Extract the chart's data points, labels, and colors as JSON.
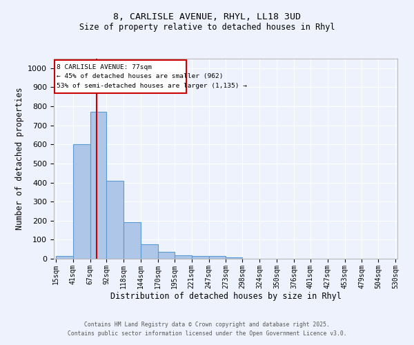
{
  "title_line1": "8, CARLISLE AVENUE, RHYL, LL18 3UD",
  "title_line2": "Size of property relative to detached houses in Rhyl",
  "xlabel": "Distribution of detached houses by size in Rhyl",
  "ylabel": "Number of detached properties",
  "bar_edges": [
    15,
    41,
    67,
    92,
    118,
    144,
    170,
    195,
    221,
    247,
    273,
    298,
    324,
    350,
    376,
    401,
    427,
    453,
    479,
    504,
    530
  ],
  "bar_heights": [
    15,
    600,
    770,
    410,
    193,
    75,
    38,
    18,
    13,
    13,
    8,
    0,
    0,
    0,
    0,
    0,
    0,
    0,
    0,
    0
  ],
  "bar_color": "#aec6e8",
  "bar_edgecolor": "#5b9bd5",
  "property_size": 77,
  "red_line_color": "#cc0000",
  "annotation_title": "8 CARLISLE AVENUE: 77sqm",
  "annotation_line2": "← 45% of detached houses are smaller (962)",
  "annotation_line3": "53% of semi-detached houses are larger (1,135) →",
  "annotation_box_color": "#cc0000",
  "annotation_text_color": "#000000",
  "ylim": [
    0,
    1050
  ],
  "yticks": [
    0,
    100,
    200,
    300,
    400,
    500,
    600,
    700,
    800,
    900,
    1000
  ],
  "background_color": "#eef2fc",
  "grid_color": "#ffffff",
  "footer_line1": "Contains HM Land Registry data © Crown copyright and database right 2025.",
  "footer_line2": "Contains public sector information licensed under the Open Government Licence v3.0."
}
